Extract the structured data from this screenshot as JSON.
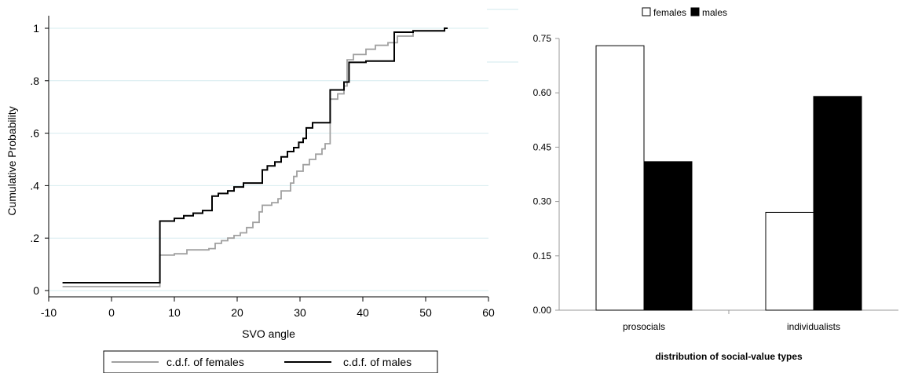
{
  "chart_data": [
    {
      "type": "line",
      "xlabel": "SVO angle",
      "ylabel": "Cumulative Probability",
      "xlim": [
        -10,
        60
      ],
      "ylim": [
        0,
        1
      ],
      "xticks": [
        "-10",
        "0",
        "10",
        "20",
        "30",
        "40",
        "50",
        "60"
      ],
      "yticks": [
        "0",
        ".2",
        ".4",
        ".6",
        ".8",
        "1"
      ],
      "grid": "horizontal",
      "legend": "bottom",
      "series": [
        {
          "name": "c.d.f. of females",
          "color": "#a0a0a0",
          "steps": [
            [
              -7.8,
              0.015
            ],
            [
              7.7,
              0.015
            ],
            [
              7.7,
              0.135
            ],
            [
              10.0,
              0.135
            ],
            [
              10.0,
              0.14
            ],
            [
              12.0,
              0.14
            ],
            [
              12.0,
              0.155
            ],
            [
              15.5,
              0.155
            ],
            [
              15.5,
              0.16
            ],
            [
              16.5,
              0.16
            ],
            [
              16.5,
              0.18
            ],
            [
              17.5,
              0.18
            ],
            [
              17.5,
              0.19
            ],
            [
              18.5,
              0.19
            ],
            [
              18.5,
              0.2
            ],
            [
              19.5,
              0.2
            ],
            [
              19.5,
              0.21
            ],
            [
              20.5,
              0.21
            ],
            [
              20.5,
              0.22
            ],
            [
              21.5,
              0.22
            ],
            [
              21.5,
              0.24
            ],
            [
              22.5,
              0.24
            ],
            [
              22.5,
              0.26
            ],
            [
              23.5,
              0.26
            ],
            [
              23.5,
              0.3
            ],
            [
              24.0,
              0.3
            ],
            [
              24.0,
              0.325
            ],
            [
              25.5,
              0.325
            ],
            [
              25.5,
              0.335
            ],
            [
              26.5,
              0.335
            ],
            [
              26.5,
              0.35
            ],
            [
              27.0,
              0.35
            ],
            [
              27.0,
              0.38
            ],
            [
              28.5,
              0.38
            ],
            [
              28.5,
              0.41
            ],
            [
              29.0,
              0.41
            ],
            [
              29.0,
              0.435
            ],
            [
              29.5,
              0.435
            ],
            [
              29.5,
              0.455
            ],
            [
              30.5,
              0.455
            ],
            [
              30.5,
              0.48
            ],
            [
              31.5,
              0.48
            ],
            [
              31.5,
              0.5
            ],
            [
              32.5,
              0.5
            ],
            [
              32.5,
              0.52
            ],
            [
              33.5,
              0.52
            ],
            [
              33.5,
              0.54
            ],
            [
              34.0,
              0.54
            ],
            [
              34.0,
              0.56
            ],
            [
              34.8,
              0.56
            ],
            [
              34.8,
              0.73
            ],
            [
              36.0,
              0.73
            ],
            [
              36.0,
              0.75
            ],
            [
              37.0,
              0.75
            ],
            [
              37.0,
              0.78
            ],
            [
              37.5,
              0.78
            ],
            [
              37.5,
              0.88
            ],
            [
              38.5,
              0.88
            ],
            [
              38.5,
              0.9
            ],
            [
              40.5,
              0.9
            ],
            [
              40.5,
              0.92
            ],
            [
              42.0,
              0.92
            ],
            [
              42.0,
              0.935
            ],
            [
              44.0,
              0.935
            ],
            [
              44.0,
              0.945
            ],
            [
              45.5,
              0.945
            ],
            [
              45.5,
              0.97
            ],
            [
              48.0,
              0.97
            ],
            [
              48.0,
              0.99
            ],
            [
              53.0,
              0.99
            ],
            [
              53.0,
              1.0
            ],
            [
              53.5,
              1.0
            ]
          ]
        },
        {
          "name": "c.d.f. of males",
          "color": "#000000",
          "steps": [
            [
              -7.8,
              0.03
            ],
            [
              7.7,
              0.03
            ],
            [
              7.7,
              0.265
            ],
            [
              10.0,
              0.265
            ],
            [
              10.0,
              0.275
            ],
            [
              11.5,
              0.275
            ],
            [
              11.5,
              0.285
            ],
            [
              13.0,
              0.285
            ],
            [
              13.0,
              0.295
            ],
            [
              14.5,
              0.295
            ],
            [
              14.5,
              0.305
            ],
            [
              16.0,
              0.305
            ],
            [
              16.0,
              0.36
            ],
            [
              17.0,
              0.36
            ],
            [
              17.0,
              0.37
            ],
            [
              18.5,
              0.37
            ],
            [
              18.5,
              0.38
            ],
            [
              19.5,
              0.38
            ],
            [
              19.5,
              0.395
            ],
            [
              21.0,
              0.395
            ],
            [
              21.0,
              0.41
            ],
            [
              24.0,
              0.41
            ],
            [
              24.0,
              0.46
            ],
            [
              24.8,
              0.46
            ],
            [
              24.8,
              0.475
            ],
            [
              26.0,
              0.475
            ],
            [
              26.0,
              0.49
            ],
            [
              27.0,
              0.49
            ],
            [
              27.0,
              0.51
            ],
            [
              28.0,
              0.51
            ],
            [
              28.0,
              0.53
            ],
            [
              29.0,
              0.53
            ],
            [
              29.0,
              0.545
            ],
            [
              29.8,
              0.545
            ],
            [
              29.8,
              0.565
            ],
            [
              30.5,
              0.565
            ],
            [
              30.5,
              0.58
            ],
            [
              31.0,
              0.58
            ],
            [
              31.0,
              0.62
            ],
            [
              32.0,
              0.62
            ],
            [
              32.0,
              0.64
            ],
            [
              34.8,
              0.64
            ],
            [
              34.8,
              0.765
            ],
            [
              37.0,
              0.765
            ],
            [
              37.0,
              0.795
            ],
            [
              37.8,
              0.795
            ],
            [
              37.8,
              0.87
            ],
            [
              40.5,
              0.87
            ],
            [
              40.5,
              0.875
            ],
            [
              45.0,
              0.875
            ],
            [
              45.0,
              0.985
            ],
            [
              48.0,
              0.985
            ],
            [
              48.0,
              0.99
            ],
            [
              53.0,
              0.99
            ],
            [
              53.0,
              1.0
            ],
            [
              53.5,
              1.0
            ]
          ]
        }
      ]
    },
    {
      "type": "bar",
      "xlabel": "distribution of social-value types",
      "ylabel": "",
      "categories": [
        "prosocials",
        "individualists"
      ],
      "ylim": [
        0,
        0.75
      ],
      "yticks": [
        "0.00",
        "0.15",
        "0.30",
        "0.45",
        "0.60",
        "0.75"
      ],
      "legend": "top",
      "series": [
        {
          "name": "females",
          "fill": "#ffffff",
          "values": [
            0.73,
            0.27
          ]
        },
        {
          "name": "males",
          "fill": "#000000",
          "values": [
            0.41,
            0.59
          ]
        }
      ]
    }
  ]
}
